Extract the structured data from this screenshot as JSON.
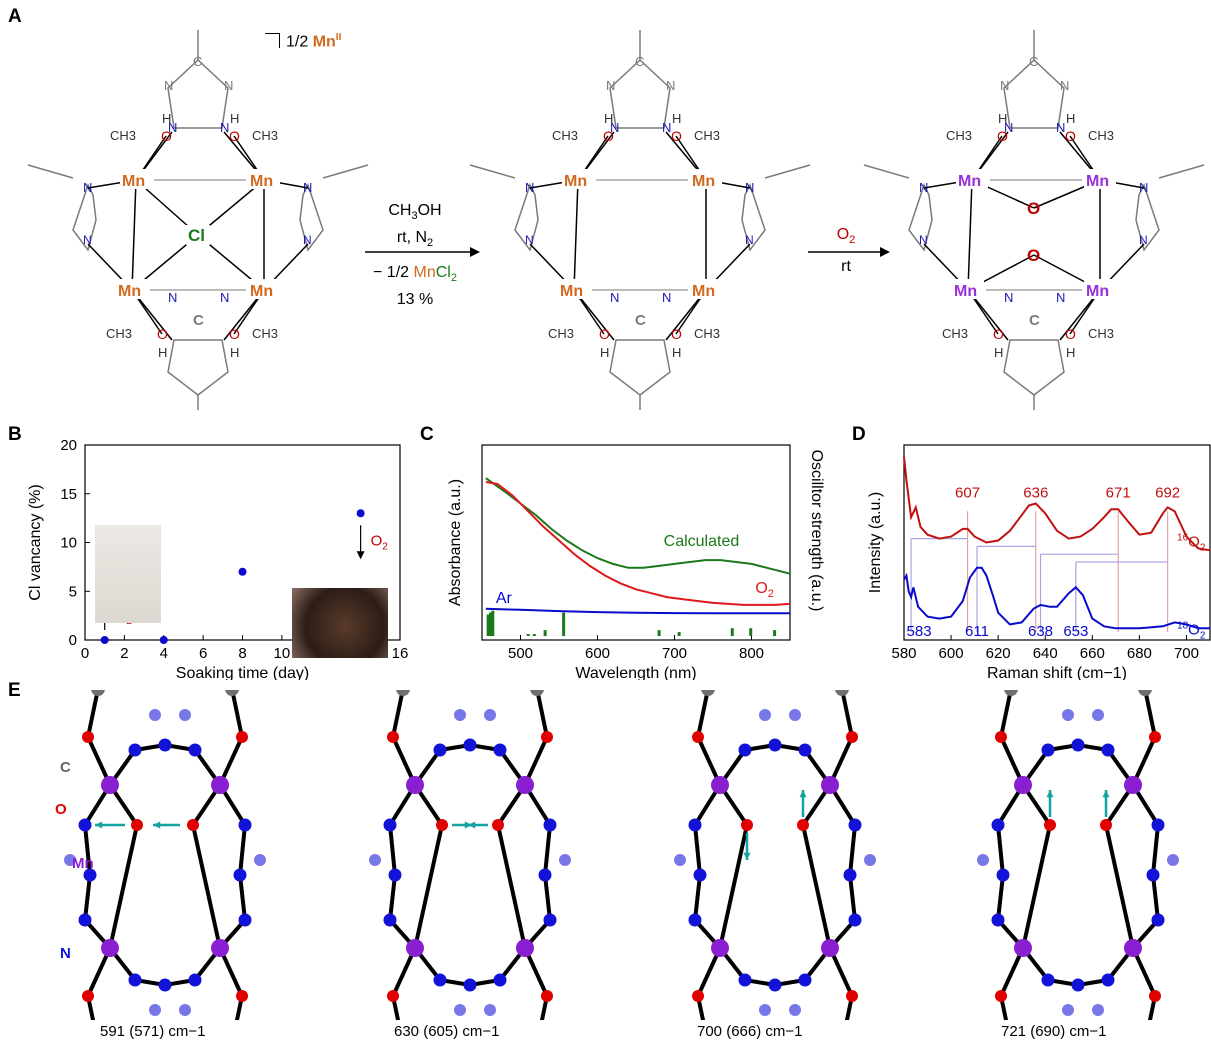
{
  "panels": {
    "A": "A",
    "B": "B",
    "C": "C",
    "D": "D",
    "E": "E"
  },
  "scheme": {
    "mn_ii_note_prefix": "1/2 ",
    "mn_ii_note_metal": "Mn",
    "mn_ii_note_ox": "II",
    "metal_label": "Mn",
    "chloride_label": "Cl",
    "oxo_label": "O",
    "nitrogen_label": "N",
    "carbon_label": "C",
    "hydroxyl_o": "O",
    "hydroxyl_h": "H",
    "methyl_label": "CH3",
    "step1": {
      "line1_a": "CH",
      "line1_sub": "3",
      "line1_b": "OH",
      "line2_a": "rt, N",
      "line2_sub": "2",
      "line3_a": "− 1/2 ",
      "line3_mn": "Mn",
      "line3_cl": "Cl",
      "line3_sub": "2",
      "line4": "13 %"
    },
    "step2": {
      "line1_a": "O",
      "line1_sub": "2",
      "line2": "rt"
    },
    "colors": {
      "mn_first": "#d2691e",
      "mn_oxo": "#9b2fd6",
      "cl": "#1a7a1a",
      "o": "#c00000",
      "n": "#1a1ab0",
      "bond": "#000000",
      "triazole": "#7a7a7a"
    }
  },
  "chart_data": [
    {
      "panel": "B",
      "type": "scatter",
      "xlabel": "Soaking time (day)",
      "ylabel": "Cl vancancy (%)",
      "xlim": [
        0,
        16
      ],
      "ylim": [
        0,
        20
      ],
      "xticks": [
        "0",
        "2",
        "4",
        "6",
        "8",
        "10",
        "12",
        "14",
        "16"
      ],
      "yticks": [
        "0",
        "5",
        "10",
        "15",
        "20"
      ],
      "x": [
        1,
        4,
        8,
        14
      ],
      "y": [
        0,
        0,
        7,
        13
      ],
      "color": "#0a0acc",
      "annotations": [
        {
          "text_a": "O",
          "text_sub": "2",
          "arrow": "up",
          "x": 1
        },
        {
          "text_a": "O",
          "text_sub": "2",
          "arrow": "down",
          "x": 14
        }
      ]
    },
    {
      "panel": "C",
      "type": "line",
      "xlabel": "Wavelength (nm)",
      "ylabel": "Absorbance (a.u.)",
      "ylabel_right": "Oscilltor strength (a.u.)",
      "xlim": [
        450,
        850
      ],
      "ylim": [
        0,
        1
      ],
      "xticks": [
        "500",
        "600",
        "700",
        "800"
      ],
      "series": [
        {
          "name": "Calculated",
          "color": "#1a7a1a",
          "x": [
            455,
            480,
            500,
            520,
            540,
            560,
            580,
            600,
            620,
            640,
            660,
            680,
            700,
            720,
            740,
            760,
            780,
            800,
            820,
            850
          ],
          "values": [
            0.83,
            0.76,
            0.7,
            0.64,
            0.57,
            0.51,
            0.46,
            0.42,
            0.39,
            0.37,
            0.37,
            0.38,
            0.39,
            0.4,
            0.41,
            0.41,
            0.4,
            0.39,
            0.37,
            0.34
          ]
        },
        {
          "name": "O2",
          "label_a": "O",
          "label_sub": "2",
          "color": "#e0191b",
          "x": [
            455,
            470,
            490,
            510,
            530,
            550,
            570,
            590,
            610,
            630,
            650,
            670,
            690,
            710,
            730,
            750,
            770,
            790,
            810,
            830,
            850
          ],
          "values": [
            0.81,
            0.8,
            0.74,
            0.66,
            0.58,
            0.51,
            0.44,
            0.38,
            0.33,
            0.29,
            0.26,
            0.24,
            0.22,
            0.21,
            0.2,
            0.19,
            0.185,
            0.18,
            0.18,
            0.18,
            0.185
          ]
        },
        {
          "name": "Ar",
          "color": "#0a0acc",
          "x": [
            455,
            500,
            550,
            600,
            650,
            700,
            750,
            800,
            850
          ],
          "values": [
            0.16,
            0.155,
            0.148,
            0.143,
            0.14,
            0.138,
            0.137,
            0.137,
            0.137
          ]
        }
      ],
      "oscillator_sticks": {
        "color": "#1a7a1a",
        "x": [
          458,
          461,
          464,
          510,
          518,
          532,
          556,
          680,
          706,
          775,
          799,
          830
        ],
        "values": [
          0.11,
          0.12,
          0.13,
          0.01,
          0.01,
          0.03,
          0.12,
          0.03,
          0.02,
          0.04,
          0.04,
          0.03
        ]
      }
    },
    {
      "panel": "D",
      "type": "line",
      "xlabel": "Raman shift (cm−1)",
      "ylabel": "Intensity (a.u.)",
      "xlim": [
        580,
        710
      ],
      "ylim": [
        0,
        1
      ],
      "xticks": [
        "580",
        "600",
        "620",
        "640",
        "660",
        "680",
        "700"
      ],
      "series": [
        {
          "name": "16O2",
          "label_sup": "16",
          "label_a": "O",
          "label_sub": "2",
          "color": "#c01010",
          "x": [
            580,
            581,
            583,
            585,
            587,
            590,
            595,
            600,
            605,
            607,
            610,
            615,
            620,
            625,
            630,
            633,
            636,
            640,
            645,
            650,
            655,
            660,
            665,
            668,
            671,
            675,
            680,
            685,
            690,
            692,
            695,
            700,
            705,
            710
          ],
          "values": [
            0.94,
            0.82,
            0.63,
            0.68,
            0.58,
            0.54,
            0.52,
            0.53,
            0.57,
            0.57,
            0.53,
            0.5,
            0.51,
            0.56,
            0.64,
            0.69,
            0.7,
            0.65,
            0.56,
            0.52,
            0.53,
            0.57,
            0.63,
            0.67,
            0.67,
            0.61,
            0.54,
            0.55,
            0.65,
            0.68,
            0.66,
            0.53,
            0.47,
            0.46
          ]
        },
        {
          "name": "18O2",
          "label_sup": "18",
          "label_a": "O",
          "label_sub": "2",
          "color": "#0a0acc",
          "x": [
            580,
            581,
            582,
            583,
            584,
            586,
            590,
            595,
            600,
            605,
            608,
            611,
            613,
            615,
            618,
            620,
            625,
            630,
            635,
            638,
            642,
            645,
            650,
            653,
            656,
            660,
            665,
            670,
            680,
            690,
            695,
            700,
            705,
            710
          ],
          "values": [
            0.31,
            0.33,
            0.25,
            0.22,
            0.27,
            0.17,
            0.12,
            0.11,
            0.12,
            0.2,
            0.32,
            0.37,
            0.37,
            0.33,
            0.22,
            0.14,
            0.08,
            0.09,
            0.16,
            0.18,
            0.17,
            0.17,
            0.24,
            0.27,
            0.23,
            0.11,
            0.07,
            0.06,
            0.06,
            0.07,
            0.09,
            0.08,
            0.06,
            0.06
          ]
        }
      ],
      "peak_labels_top": [
        "607",
        "636",
        "671",
        "692"
      ],
      "peak_labels_top_x": [
        607,
        636,
        671,
        692
      ],
      "peak_labels_bottom": [
        "583",
        "611",
        "638",
        "653"
      ],
      "peak_labels_bottom_x": [
        583,
        611,
        638,
        653
      ]
    }
  ],
  "panel_E": {
    "labels": {
      "C": "C",
      "O": "O",
      "Mn": "Mn",
      "N": "N"
    },
    "captions": [
      "591 (571) cm−1",
      "630 (605) cm−1",
      "700 (666) cm−1",
      "721 (690) cm−1"
    ],
    "arrow_modes": [
      "asym-left",
      "sym-inward",
      "opposed-vertical",
      "parallel-up"
    ],
    "colors": {
      "mn": "#8a1fd1",
      "o": "#e00000",
      "n": "#1212d8",
      "c": "#6f6f6f",
      "arrow": "#14a3a0"
    }
  }
}
